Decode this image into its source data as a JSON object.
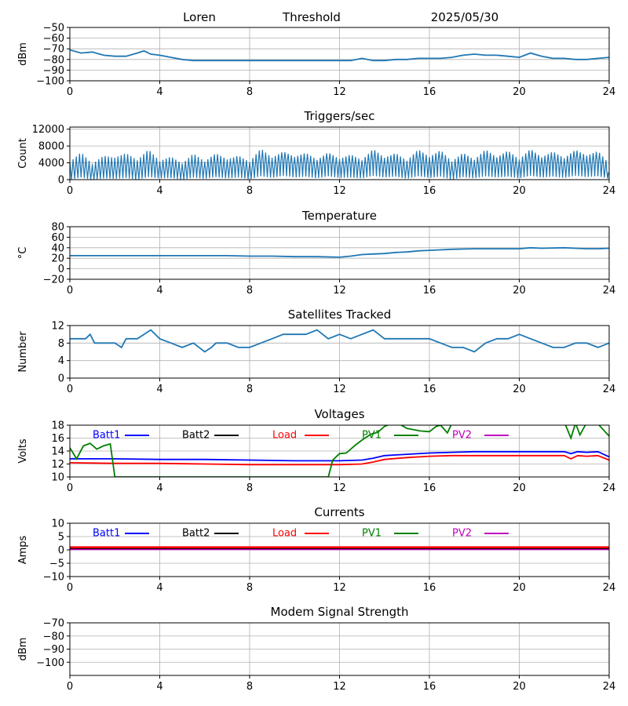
{
  "header": {
    "station": "Loren",
    "mode": "Threshold",
    "date": "2025/05/30"
  },
  "x_axis": {
    "range": [
      0,
      24
    ],
    "ticks": [
      0,
      4,
      8,
      12,
      16,
      20,
      24
    ]
  },
  "colors": {
    "default_line": "#1f77b4",
    "grid": "#b0b0b0",
    "Batt1": "#0000ff",
    "Batt2": "#000000",
    "Load": "#ff0000",
    "PV1": "#008000",
    "PV2": "#bf00bf"
  },
  "chart_data": [
    {
      "id": "threshold",
      "type": "line",
      "title": "",
      "ylabel": "dBm",
      "ylim": [
        -100,
        -50
      ],
      "yticks": [
        -100,
        -90,
        -80,
        -70,
        -60,
        -50
      ],
      "grid": true,
      "series": [
        {
          "x": [
            0,
            0.5,
            1,
            1.5,
            2,
            2.5,
            3,
            3.3,
            3.6,
            4,
            4.5,
            5,
            5.5,
            6,
            6.5,
            7,
            7.5,
            8,
            9,
            10,
            11,
            12,
            12.5,
            13,
            13.5,
            14,
            14.5,
            15,
            15.5,
            16,
            16.5,
            17,
            17.5,
            18,
            18.5,
            19,
            19.5,
            20,
            20.5,
            21,
            21.5,
            22,
            22.5,
            23,
            23.5,
            24
          ],
          "y": [
            -71,
            -74,
            -73,
            -76,
            -77,
            -77,
            -74,
            -72,
            -75,
            -76,
            -78,
            -80,
            -81,
            -81,
            -81,
            -81,
            -81,
            -81,
            -81,
            -81,
            -81,
            -81,
            -81,
            -79,
            -81,
            -81,
            -80,
            -80,
            -79,
            -79,
            -79,
            -78,
            -76,
            -75,
            -76,
            -76,
            -77,
            -78,
            -74,
            -77,
            -79,
            -79,
            -80,
            -80,
            -79,
            -78
          ]
        }
      ]
    },
    {
      "id": "triggers",
      "type": "line",
      "title": "Triggers/sec",
      "ylabel": "Count",
      "ylim": [
        0,
        12500
      ],
      "yticks": [
        0,
        4000,
        8000,
        12000
      ],
      "grid": true,
      "series": [
        {
          "x": [
            0,
            0.5,
            1,
            1.5,
            2,
            2.5,
            3,
            3.5,
            4,
            4.5,
            5,
            5.5,
            6,
            6.5,
            7,
            7.5,
            8,
            8.5,
            9,
            9.5,
            10,
            10.5,
            11,
            11.5,
            12,
            12.5,
            13,
            13.5,
            14,
            14.5,
            15,
            15.5,
            16,
            16.5,
            17,
            17.5,
            18,
            18.5,
            19,
            19.5,
            20,
            20.5,
            21,
            21.5,
            22,
            22.5,
            23,
            23.5,
            24
          ],
          "y": [
            2000,
            3500,
            1500,
            3000,
            2500,
            3800,
            2000,
            4200,
            2400,
            3100,
            1700,
            3600,
            2200,
            4000,
            2500,
            3700,
            2100,
            4700,
            2800,
            5000,
            3300,
            4400,
            2600,
            4600,
            2900,
            4000,
            2500,
            5200,
            3000,
            4200,
            2200,
            5000,
            3100,
            4900,
            2000,
            4300,
            2400,
            5100,
            3200,
            4800,
            2600,
            5200,
            3300,
            4600,
            2800,
            5300,
            3500,
            4700,
            1500
          ],
          "lower": [
            0,
            500,
            0,
            300,
            200,
            400,
            0,
            600,
            300,
            400,
            0,
            500,
            200,
            600,
            300,
            500,
            100,
            800,
            400,
            900,
            500,
            700,
            300,
            800,
            400,
            500,
            300,
            900,
            500,
            700,
            200,
            800,
            400,
            700,
            0,
            600,
            300,
            800,
            500,
            700,
            300,
            900,
            500,
            700,
            400,
            900,
            600,
            800,
            200
          ],
          "upper": [
            4200,
            6500,
            3700,
            5700,
            5200,
            6300,
            4600,
            7200,
            4400,
            5500,
            3800,
            6200,
            4300,
            6300,
            4800,
            5700,
            4200,
            7400,
            5200,
            6700,
            5400,
            6400,
            4700,
            6500,
            4900,
            6000,
            4600,
            7300,
            5200,
            6300,
            4500,
            7200,
            5400,
            7000,
            4300,
            6400,
            4700,
            7200,
            5300,
            6900,
            4800,
            7300,
            5300,
            6700,
            5100,
            7100,
            5700,
            6800,
            3800
          ]
        }
      ]
    },
    {
      "id": "temperature",
      "type": "line",
      "title": "Temperature",
      "ylabel": "°C",
      "ylim": [
        -20,
        80
      ],
      "yticks": [
        -20,
        0,
        20,
        40,
        60,
        80
      ],
      "grid": true,
      "series": [
        {
          "x": [
            0,
            1,
            2,
            3,
            4,
            5,
            6,
            7,
            8,
            9,
            10,
            11,
            12,
            12.5,
            13,
            13.5,
            14,
            14.5,
            15,
            15.5,
            16,
            16.5,
            17,
            18,
            19,
            20,
            20.5,
            21,
            22,
            22.5,
            23,
            23.5,
            24
          ],
          "y": [
            25,
            25,
            25,
            25,
            25,
            25,
            25,
            25,
            24,
            24,
            23,
            23,
            22,
            24,
            27,
            28,
            29,
            31,
            32,
            34,
            35,
            36,
            37,
            38,
            38,
            38,
            40,
            39,
            40,
            39,
            38,
            38,
            39
          ]
        }
      ]
    },
    {
      "id": "satellites",
      "type": "line",
      "title": "Satellites Tracked",
      "ylabel": "Number",
      "ylim": [
        0,
        12
      ],
      "yticks": [
        0,
        4,
        8,
        12
      ],
      "grid": true,
      "series": [
        {
          "x": [
            0,
            0.5,
            0.7,
            0.9,
            1.1,
            1.5,
            2,
            2.3,
            2.5,
            3,
            3.3,
            3.6,
            4,
            4.5,
            5,
            5.5,
            6,
            6.3,
            6.5,
            7,
            7.5,
            8,
            8.5,
            9,
            9.5,
            10,
            10.5,
            11,
            11.5,
            12,
            12.5,
            13,
            13.5,
            14,
            14.5,
            15,
            15.5,
            16,
            16.5,
            17,
            17.5,
            18,
            18.5,
            19,
            19.5,
            20,
            20.5,
            21,
            21.5,
            22,
            22.5,
            23,
            23.5,
            24
          ],
          "y": [
            9,
            9,
            9,
            10,
            8,
            8,
            8,
            7,
            9,
            9,
            10,
            11,
            9,
            8,
            7,
            8,
            6,
            7,
            8,
            8,
            7,
            7,
            8,
            9,
            10,
            10,
            10,
            11,
            9,
            10,
            9,
            10,
            11,
            9,
            9,
            9,
            9,
            9,
            8,
            7,
            7,
            6,
            8,
            9,
            9,
            10,
            9,
            8,
            7,
            7,
            8,
            8,
            7,
            8
          ]
        }
      ]
    },
    {
      "id": "voltages",
      "type": "line",
      "title": "Voltages",
      "ylabel": "Volts",
      "ylim": [
        10,
        18
      ],
      "yticks": [
        10,
        12,
        14,
        16,
        18
      ],
      "grid": true,
      "legend": [
        "Batt1",
        "Batt2",
        "Load",
        "PV1",
        "PV2"
      ],
      "series": [
        {
          "name": "Batt1",
          "x": [
            0,
            2,
            4,
            6,
            8,
            10,
            12,
            13,
            13.5,
            14,
            15,
            16,
            17,
            18,
            19,
            20,
            21,
            22,
            22.3,
            22.6,
            23,
            23.5,
            24
          ],
          "y": [
            12.8,
            12.8,
            12.7,
            12.7,
            12.6,
            12.5,
            12.5,
            12.6,
            12.9,
            13.3,
            13.5,
            13.7,
            13.8,
            13.9,
            13.9,
            13.9,
            13.9,
            13.9,
            13.6,
            13.9,
            13.8,
            13.9,
            13.1
          ]
        },
        {
          "name": "Load",
          "x": [
            0,
            2,
            4,
            6,
            8,
            10,
            12,
            13,
            13.5,
            14,
            15,
            16,
            17,
            18,
            19,
            20,
            21,
            22,
            22.3,
            22.6,
            23,
            23.5,
            24
          ],
          "y": [
            12.2,
            12.1,
            12.1,
            12.0,
            11.9,
            11.9,
            11.9,
            12.0,
            12.3,
            12.7,
            13.0,
            13.2,
            13.3,
            13.3,
            13.3,
            13.3,
            13.3,
            13.3,
            12.8,
            13.3,
            13.2,
            13.3,
            12.6
          ]
        },
        {
          "name": "PV1",
          "x": [
            0,
            0.3,
            0.6,
            0.9,
            1.2,
            1.5,
            1.8,
            2.0,
            11.5,
            11.7,
            12,
            12.3,
            12.7,
            13,
            13.4,
            13.7,
            14,
            14.5,
            15,
            15.3,
            15.6,
            16,
            16.3,
            16.5,
            16.8,
            17,
            17.5,
            18,
            18.5,
            19,
            19.5,
            20,
            20.5,
            21,
            21.5,
            22,
            22.3,
            22.5,
            22.7,
            23,
            23.5,
            24
          ],
          "y": [
            14.5,
            12.8,
            14.8,
            15.2,
            14.3,
            14.8,
            15.1,
            10.0,
            10.0,
            12.6,
            13.6,
            13.7,
            14.9,
            15.7,
            16.6,
            16.9,
            17.8,
            18.5,
            17.5,
            17.3,
            17.1,
            17.0,
            17.8,
            18.0,
            16.8,
            18.3,
            18.5,
            18.5,
            18.5,
            18.5,
            18.5,
            18.5,
            18.5,
            18.5,
            18.5,
            18.5,
            16.0,
            18.3,
            16.5,
            18.4,
            18.2,
            16.3
          ]
        }
      ]
    },
    {
      "id": "currents",
      "type": "line",
      "title": "Currents",
      "ylabel": "Amps",
      "ylim": [
        -10,
        10
      ],
      "yticks": [
        -10,
        -5,
        0,
        5,
        10
      ],
      "grid": true,
      "legend": [
        "Batt1",
        "Batt2",
        "Load",
        "PV1",
        "PV2"
      ],
      "series": [
        {
          "name": "PV2",
          "x": [
            0,
            24
          ],
          "y": [
            0.3,
            0.3
          ]
        },
        {
          "name": "Batt2",
          "x": [
            0,
            24
          ],
          "y": [
            0.7,
            0.7
          ]
        },
        {
          "name": "Load",
          "x": [
            0,
            4,
            8,
            12,
            16,
            20,
            24
          ],
          "y": [
            1.0,
            1.0,
            1.0,
            1.0,
            1.0,
            1.0,
            1.0
          ]
        }
      ]
    },
    {
      "id": "modem",
      "type": "line",
      "title": "Modem Signal Strength",
      "ylabel": "dBm",
      "ylim": [
        -110,
        -70
      ],
      "yticks": [
        -100,
        -90,
        -80,
        -70
      ],
      "grid": true,
      "series": []
    }
  ]
}
